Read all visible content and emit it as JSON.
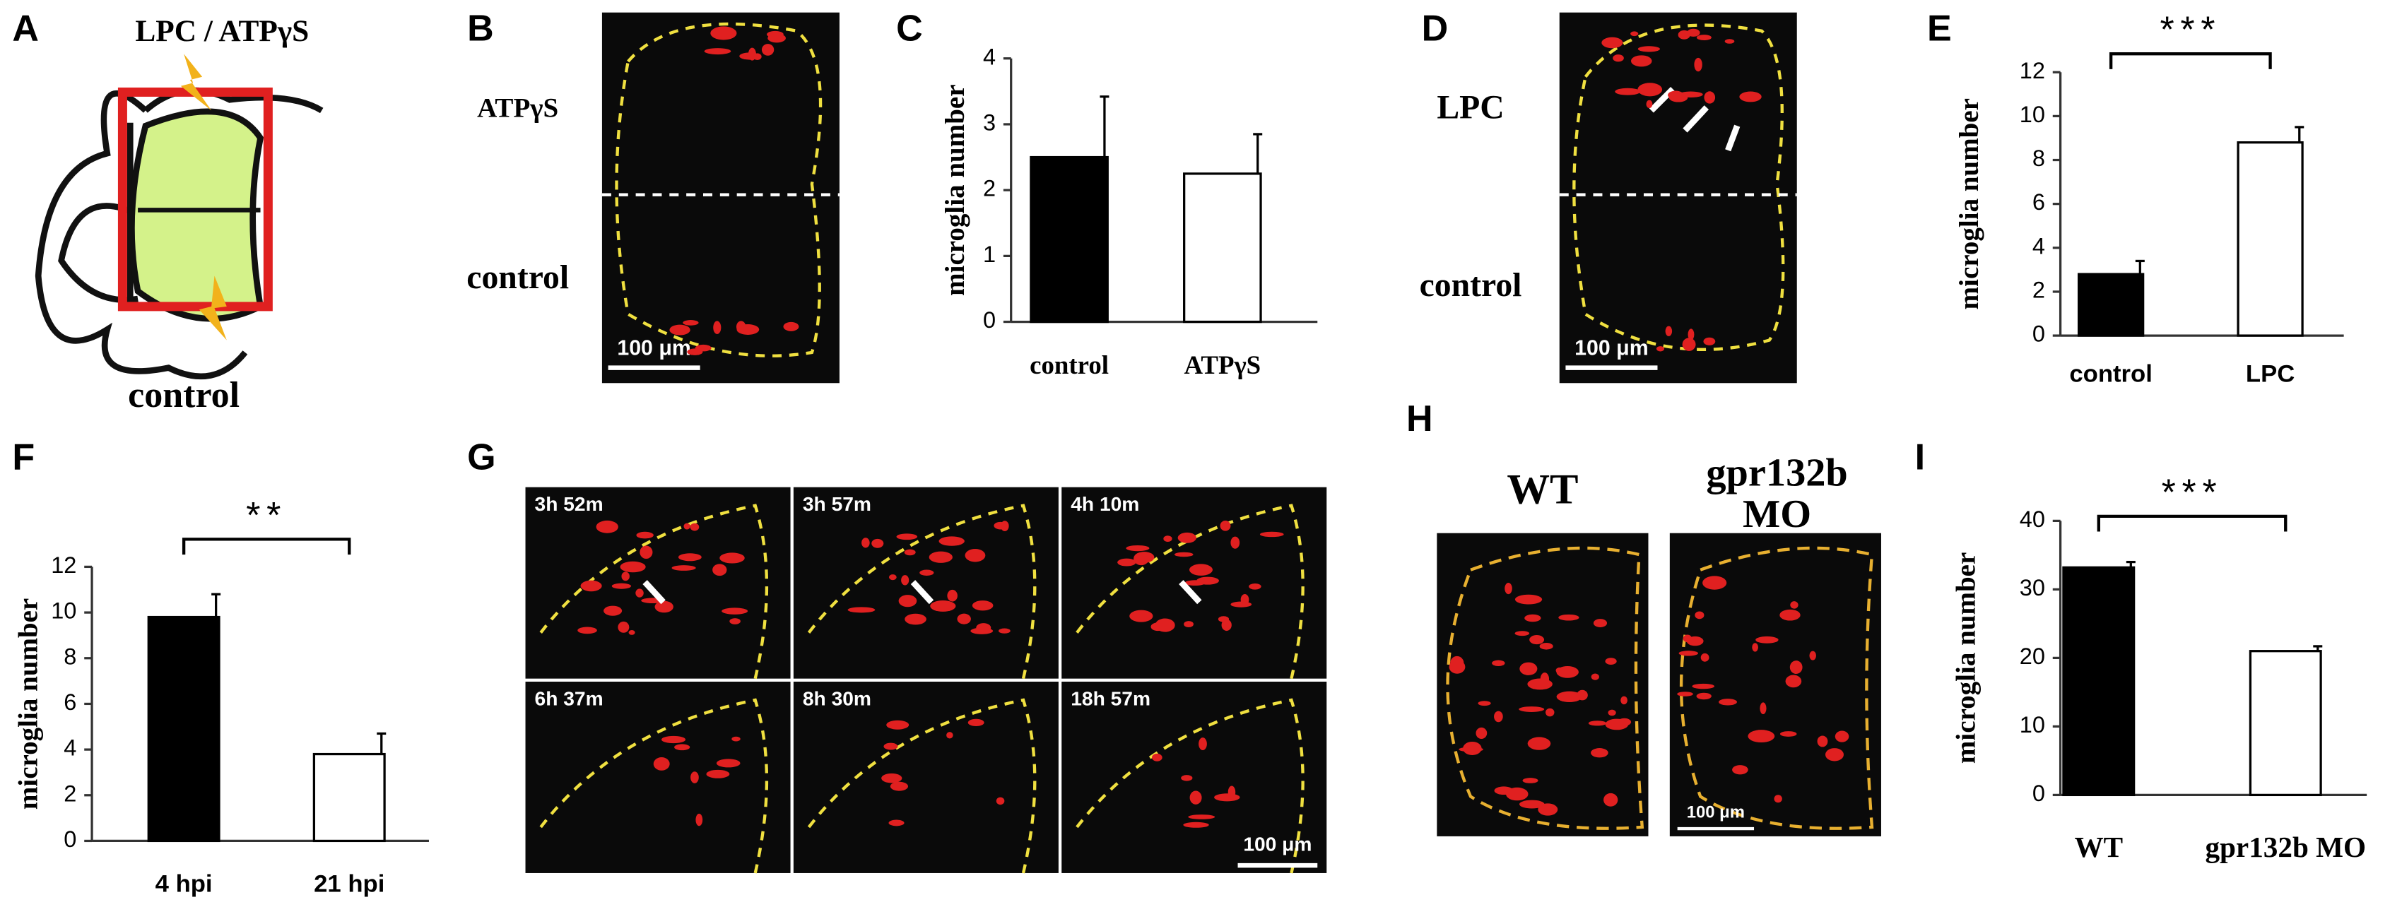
{
  "panel_labels": [
    "A",
    "B",
    "C",
    "D",
    "E",
    "F",
    "G",
    "H",
    "I"
  ],
  "diagram_a": {
    "top_label": "LPC / ATPγS",
    "bottom_label": "control"
  },
  "panel_b": {
    "top_label": "ATPγS",
    "bottom_label": "control",
    "scale_bar": "100 μm"
  },
  "panel_d": {
    "top_label": "LPC",
    "bottom_label": "control",
    "scale_bar": "100 μm"
  },
  "panel_g": {
    "timestamps": [
      "3h 52m",
      "3h 57m",
      "4h 10m",
      "6h 37m",
      "8h 30m",
      "18h 57m"
    ],
    "scale_bar": "100 μm"
  },
  "panel_h": {
    "wt_label": "WT",
    "mo_label_lines": [
      "gpr132b",
      "MO"
    ],
    "scale_bar": "100 μm"
  },
  "chart_data": [
    {
      "type": "bar",
      "categories": [
        "control",
        "ATPγS"
      ],
      "values": [
        2.5,
        2.25
      ],
      "errors": [
        0.92,
        0.6
      ],
      "colors": [
        "#000000",
        "#ffffff"
      ],
      "ylabel": "microglia number",
      "ylim": [
        0,
        4
      ],
      "yticks": [
        0,
        1,
        2,
        3,
        4
      ]
    },
    {
      "type": "bar",
      "categories": [
        "control",
        "LPC"
      ],
      "values": [
        2.8,
        8.8
      ],
      "errors": [
        0.6,
        0.7
      ],
      "colors": [
        "#000000",
        "#ffffff"
      ],
      "ylabel": "microglia number",
      "ylim": [
        0,
        12
      ],
      "yticks": [
        0,
        2,
        4,
        6,
        8,
        10,
        12
      ],
      "annotation": "***"
    },
    {
      "type": "bar",
      "categories": [
        "4 hpi",
        "21 hpi"
      ],
      "values": [
        9.8,
        3.8
      ],
      "errors": [
        1.0,
        0.9
      ],
      "colors": [
        "#000000",
        "#ffffff"
      ],
      "ylabel": "microglia number",
      "ylim": [
        0,
        12
      ],
      "yticks": [
        0,
        2,
        4,
        6,
        8,
        10,
        12
      ],
      "annotation": "**"
    },
    {
      "type": "bar",
      "categories": [
        "WT",
        "gpr132b MO"
      ],
      "values": [
        33.2,
        21.0
      ],
      "errors": [
        0.8,
        0.7
      ],
      "colors": [
        "#000000",
        "#ffffff"
      ],
      "ylabel": "microglia number",
      "ylim": [
        0,
        40
      ],
      "yticks": [
        0,
        10,
        20,
        30,
        40
      ],
      "annotation": "***"
    }
  ]
}
